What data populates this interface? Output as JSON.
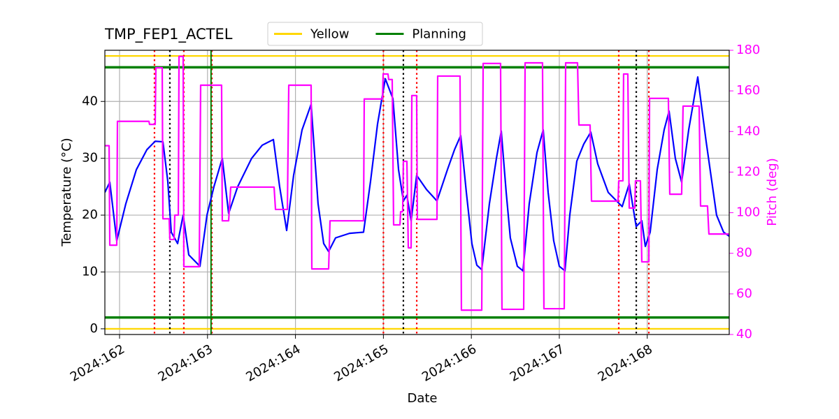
{
  "chart_data": {
    "type": "line",
    "title": "TMP_FEP1_ACTEL",
    "xlabel": "Date",
    "ylabel": "Temperature (°C)",
    "y2label": "Pitch (deg)",
    "xlim": [
      161.833,
      168.932
    ],
    "xticks": [
      {
        "value": 162,
        "label": "2024:162"
      },
      {
        "value": 163,
        "label": "2024:163"
      },
      {
        "value": 164,
        "label": "2024:164"
      },
      {
        "value": 165,
        "label": "2024:165"
      },
      {
        "value": 166,
        "label": "2024:166"
      },
      {
        "value": 167,
        "label": "2024:167"
      },
      {
        "value": 168,
        "label": "2024:168"
      }
    ],
    "ylim": [
      -1,
      49
    ],
    "yticks": [
      0,
      10,
      20,
      30,
      40
    ],
    "y2lim": [
      40,
      180
    ],
    "y2ticks": [
      40,
      60,
      80,
      100,
      120,
      140,
      160,
      180
    ],
    "grid": true,
    "legend": "upper center",
    "hlines": [
      {
        "name": "Yellow",
        "color": "#ffd700",
        "values": [
          0,
          48
        ]
      },
      {
        "name": "Planning",
        "color": "#008000",
        "values": [
          2,
          46
        ]
      }
    ],
    "vlines": [
      {
        "color": "#ff0000",
        "style": "dotted",
        "x": [
          162.397,
          162.731,
          163.05,
          165.0,
          165.379,
          167.676,
          168.018
        ]
      },
      {
        "color": "#000000",
        "style": "dotted",
        "x": [
          162.572,
          165.227,
          167.875
        ]
      },
      {
        "color": "#008000",
        "style": "solid",
        "x": [
          163.04
        ]
      }
    ],
    "series": [
      {
        "color": "#0000ff",
        "x": [
          161.833,
          161.889,
          161.968,
          162.071,
          162.191,
          162.31,
          162.405,
          162.493,
          162.548,
          162.588,
          162.66,
          162.723,
          162.787,
          162.914,
          162.994,
          163.073,
          163.168,
          163.24,
          163.343,
          163.502,
          163.622,
          163.749,
          163.82,
          163.9,
          163.979,
          164.075,
          164.178,
          164.257,
          164.321,
          164.377,
          164.456,
          164.615,
          164.774,
          164.854,
          164.933,
          165.021,
          165.108,
          165.172,
          165.227,
          165.267,
          165.315,
          165.378,
          165.49,
          165.609,
          165.728,
          165.808,
          165.879,
          165.943,
          166.006,
          166.062,
          166.118,
          166.205,
          166.285,
          166.34,
          166.396,
          166.443,
          166.523,
          166.587,
          166.658,
          166.746,
          166.817,
          166.873,
          166.936,
          167.0,
          167.064,
          167.119,
          167.199,
          167.278,
          167.358,
          167.437,
          167.556,
          167.715,
          167.795,
          167.874,
          167.938,
          167.978,
          168.033,
          168.113,
          168.192,
          168.248,
          168.319,
          168.391,
          168.471,
          168.574,
          168.669,
          168.788,
          168.868,
          168.932
        ],
        "values": [
          24,
          25.8,
          15.5,
          22,
          28,
          31.5,
          33,
          32.9,
          26,
          17,
          15,
          20,
          13,
          11,
          20,
          25,
          30,
          20.3,
          25,
          30,
          32.3,
          33.3,
          25,
          17.3,
          27,
          35,
          39.5,
          22,
          15,
          13.6,
          16,
          16.8,
          17,
          26,
          36,
          44,
          40.5,
          28,
          22.5,
          23.5,
          19,
          27,
          24.5,
          22.5,
          28,
          31.5,
          34,
          24,
          15,
          11.2,
          10.4,
          22,
          30,
          34.8,
          24,
          16,
          11,
          10.2,
          22,
          31,
          35,
          24,
          15.5,
          11,
          10.2,
          20,
          29.5,
          32.5,
          34.6,
          29,
          24,
          21.5,
          25.5,
          18,
          19,
          14.5,
          17,
          28,
          35,
          38.3,
          30,
          25.8,
          35,
          44.3,
          33,
          20,
          17,
          16.3
        ]
      },
      {
        "color": "#ff00ff",
        "axis": "y2",
        "x": [
          161.833,
          161.881,
          161.889,
          161.968,
          161.976,
          162.334,
          162.341,
          162.405,
          162.413,
          162.485,
          162.493,
          162.564,
          162.572,
          162.62,
          162.628,
          162.668,
          162.676,
          162.723,
          162.731,
          162.906,
          162.922,
          163.16,
          163.168,
          163.24,
          163.264,
          163.757,
          163.773,
          163.908,
          163.924,
          164.178,
          164.186,
          164.377,
          164.393,
          164.774,
          164.782,
          164.989,
          164.997,
          165.052,
          165.06,
          165.1,
          165.116,
          165.188,
          165.196,
          165.219,
          165.227,
          165.267,
          165.283,
          165.315,
          165.323,
          165.378,
          165.386,
          165.609,
          165.617,
          165.871,
          165.887,
          166.118,
          166.134,
          166.332,
          166.348,
          166.595,
          166.611,
          166.809,
          166.825,
          167.056,
          167.072,
          167.207,
          167.223,
          167.35,
          167.366,
          167.668,
          167.676,
          167.723,
          167.731,
          167.779,
          167.795,
          167.858,
          167.866,
          167.922,
          167.938,
          168.018,
          168.026,
          168.24,
          168.256,
          168.391,
          168.407,
          168.59,
          168.606,
          168.685,
          168.701,
          168.932
        ],
        "values": [
          133,
          133,
          84,
          84,
          145,
          145,
          143.5,
          143.5,
          171.4,
          171.4,
          97,
          97,
          86.8,
          86.8,
          98.8,
          98.8,
          177,
          177,
          73.4,
          73.4,
          162.8,
          162.8,
          96,
          96,
          112.6,
          112.6,
          101.6,
          101.6,
          162.8,
          162.8,
          72.3,
          72.3,
          96,
          96,
          156,
          156,
          168.3,
          168.3,
          165.6,
          165.6,
          94,
          94,
          100.5,
          100.5,
          125.3,
          125.3,
          82.7,
          82.7,
          157.7,
          157.7,
          96.7,
          96.7,
          167.3,
          167.3,
          52,
          52,
          173.5,
          173.5,
          52.4,
          52.4,
          173.8,
          173.8,
          52.7,
          52.7,
          173.8,
          173.8,
          143.2,
          143.2,
          105.7,
          105.7,
          115.7,
          115.7,
          168.3,
          168.3,
          102.3,
          102.3,
          115.7,
          115.7,
          75.8,
          75.8,
          156.3,
          156.3,
          109.1,
          109.1,
          152.5,
          152.5,
          103.3,
          103.3,
          89.5,
          89.5
        ]
      }
    ]
  }
}
